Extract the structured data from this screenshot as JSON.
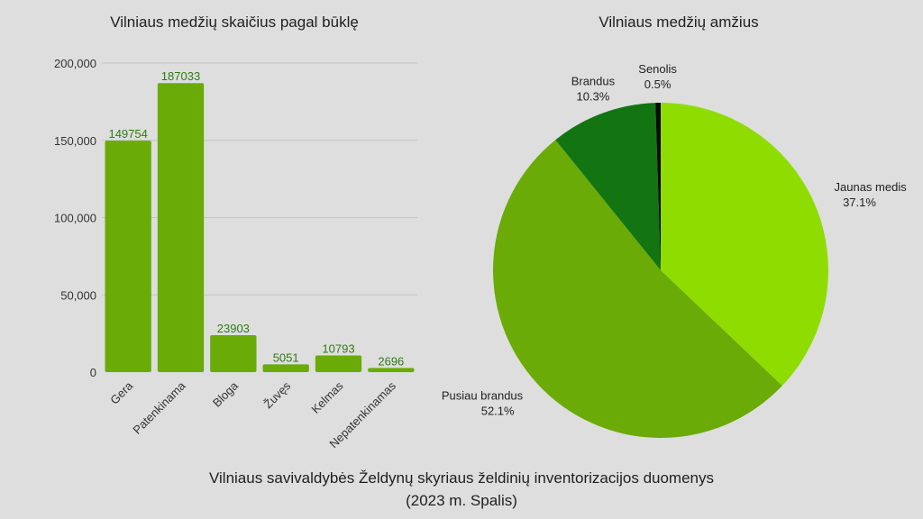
{
  "footer": {
    "line1": "Vilniaus savivaldybės Želdynų skyriaus želdinių inventorizacijos duomenys",
    "line2": "(2023 m. Spalis)"
  },
  "chart_data": [
    {
      "type": "bar",
      "title": "Vilniaus medžių skaičius pagal būklę",
      "xlabel": "",
      "ylabel": "",
      "categories": [
        "Gera",
        "Patenkinama",
        "Bloga",
        "Žuvęs",
        "Kelmas",
        "Nepatenkinamas"
      ],
      "values": [
        149754,
        187033,
        23903,
        5051,
        10793,
        2696
      ],
      "ylim": [
        0,
        200000
      ],
      "yticks": [
        0,
        50000,
        100000,
        150000,
        200000
      ],
      "ytick_labels": [
        "0",
        "50,000",
        "100,000",
        "150,000",
        "200,000"
      ],
      "grid": true,
      "bar_color": "#6aab07",
      "label_color": "#2e7d12"
    },
    {
      "type": "pie",
      "title": "Vilniaus medžių amžius",
      "start_angle_deg": 0,
      "direction": "clockwise",
      "slices": [
        {
          "label": "Jaunas medis",
          "value": 37.1,
          "pct_label": "37.1%",
          "color": "#8fdd00"
        },
        {
          "label": "Pusiau brandus",
          "value": 52.1,
          "pct_label": "52.1%",
          "color": "#6aab07"
        },
        {
          "label": "Brandus",
          "value": 10.3,
          "pct_label": "10.3%",
          "color": "#127512"
        },
        {
          "label": "Senolis",
          "value": 0.5,
          "pct_label": "0.5%",
          "color": "#0a0a0a"
        }
      ]
    }
  ]
}
